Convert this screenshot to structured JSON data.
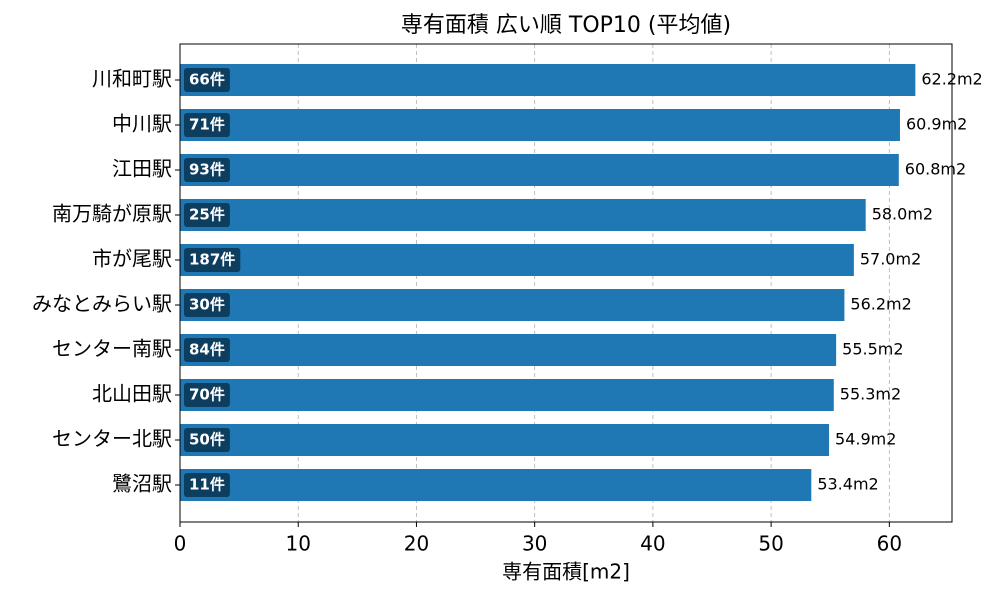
{
  "chart_data": {
    "type": "barh",
    "title": "専有面積 広い順 TOP10 (平均値)",
    "x_label": "専有面積[m2]",
    "categories": [
      "川和町駅",
      "中川駅",
      "江田駅",
      "南万騎が原駅",
      "市が尾駅",
      "みなとみらい駅",
      "センター南駅",
      "北山田駅",
      "センター北駅",
      "鷺沼駅"
    ],
    "values": [
      62.2,
      60.9,
      60.8,
      58.0,
      57.0,
      56.2,
      55.5,
      55.3,
      54.9,
      53.4
    ],
    "value_labels": [
      "62.2m2",
      "60.9m2",
      "60.8m2",
      "58.0m2",
      "57.0m2",
      "56.2m2",
      "55.5m2",
      "55.3m2",
      "54.9m2",
      "53.4m2"
    ],
    "bar_annotations": [
      "66件",
      "71件",
      "93件",
      "25件",
      "187件",
      "30件",
      "84件",
      "70件",
      "50件",
      "11件"
    ],
    "color": "#1f77b4",
    "xlim": [
      0,
      65.3
    ],
    "xticks": [
      0,
      10,
      20,
      30,
      40,
      50,
      60
    ],
    "grid": true
  }
}
